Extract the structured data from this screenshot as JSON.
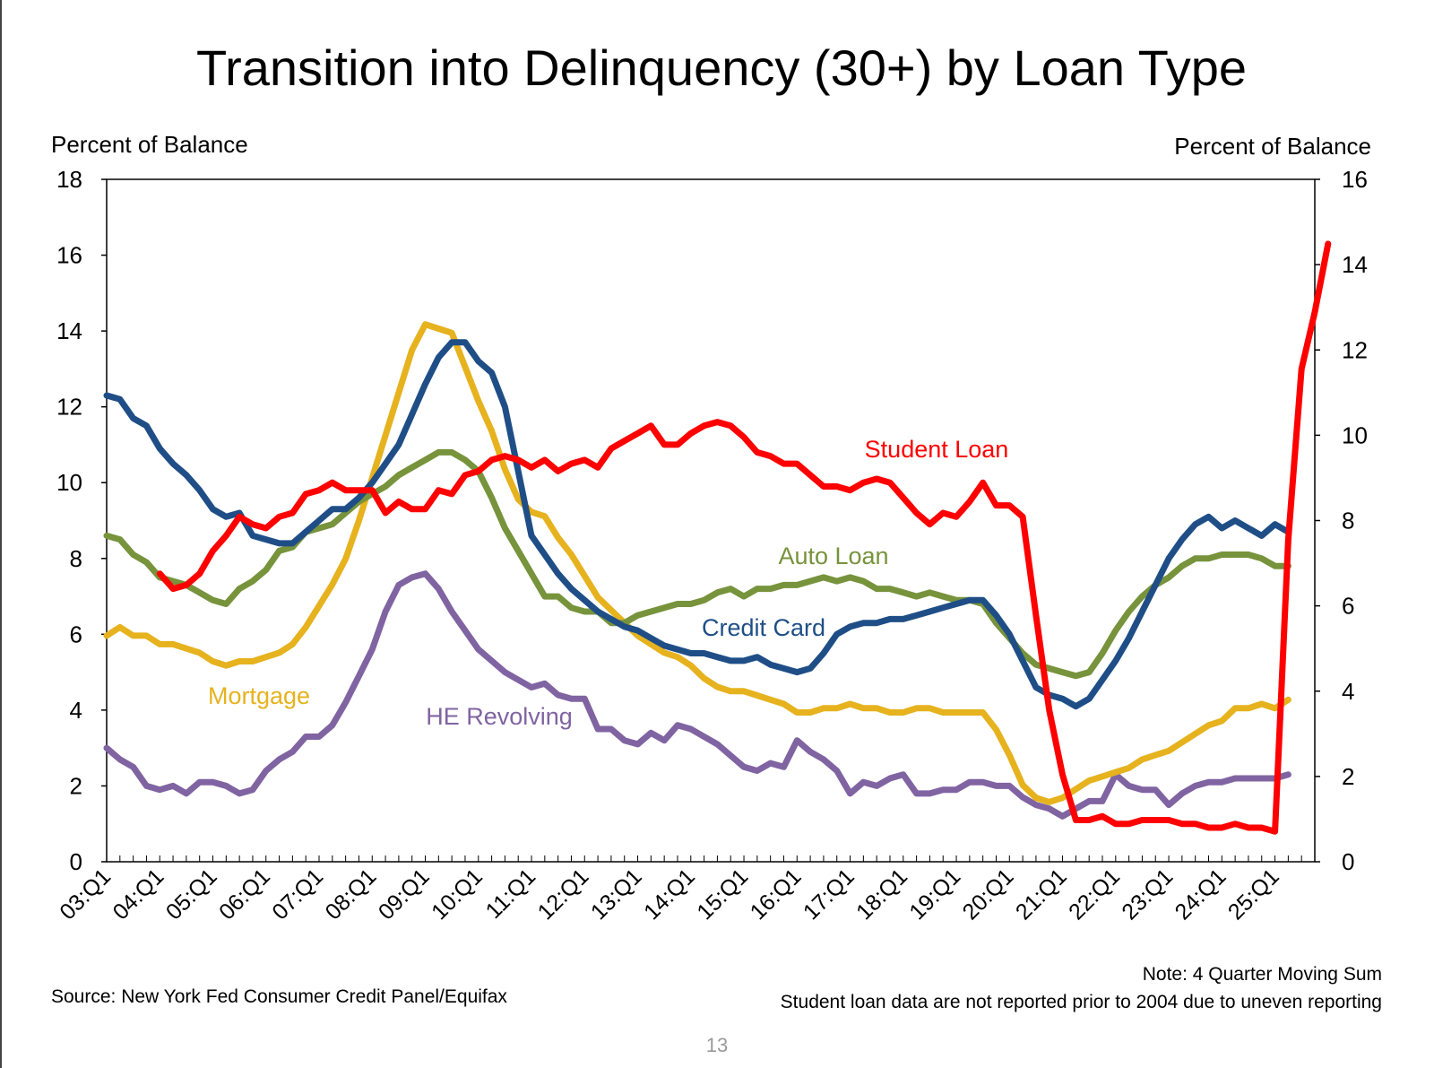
{
  "page": {
    "title": "Transition into Delinquency (30+) by Loan Type",
    "left_axis_label": "Percent of Balance",
    "right_axis_label": "Percent of Balance",
    "source": "Source: New York Fed Consumer Credit Panel/Equifax",
    "note_line1": "Note: 4 Quarter Moving Sum",
    "note_line2": "Student loan data are not reported prior to 2004 due to uneven reporting",
    "page_number": "13"
  },
  "colors": {
    "student_loan": "#ff0000",
    "credit_card": "#1f4e87",
    "auto_loan": "#77933c",
    "mortgage": "#e6b21e",
    "he_revolving": "#8064a2"
  },
  "chart_data": {
    "type": "line",
    "title": "Transition into Delinquency (30+) by Loan Type",
    "ylabel": "Percent of Balance",
    "y2label": "Percent of Balance",
    "ylim": [
      0,
      18
    ],
    "y_ticks": [
      "0",
      "2",
      "4",
      "6",
      "8",
      "10",
      "12",
      "14",
      "16",
      "18"
    ],
    "y2lim": [
      0,
      16
    ],
    "y2_ticks": [
      "0",
      "2",
      "4",
      "6",
      "8",
      "10",
      "12",
      "14",
      "16"
    ],
    "x_start": "03:Q1",
    "x_tick_labels": [
      "03:Q1",
      "04:Q1",
      "05:Q1",
      "06:Q1",
      "07:Q1",
      "08:Q1",
      "09:Q1",
      "10:Q1",
      "11:Q1",
      "12:Q1",
      "13:Q1",
      "14:Q1",
      "15:Q1",
      "16:Q1",
      "17:Q1",
      "18:Q1",
      "19:Q1",
      "20:Q1",
      "21:Q1",
      "22:Q1",
      "23:Q1",
      "24:Q1",
      "25:Q1"
    ],
    "grid": false,
    "series": [
      {
        "name": "Student Loan",
        "axis": "left",
        "start": "04:Q1",
        "values": [
          7.6,
          7.2,
          7.3,
          7.6,
          8.2,
          8.6,
          9.1,
          8.9,
          8.8,
          9.1,
          9.2,
          9.7,
          9.8,
          10.0,
          9.8,
          9.8,
          9.8,
          9.2,
          9.5,
          9.3,
          9.3,
          9.8,
          9.7,
          10.2,
          10.3,
          10.6,
          10.7,
          10.6,
          10.4,
          10.6,
          10.3,
          10.5,
          10.6,
          10.4,
          10.9,
          11.1,
          11.3,
          11.5,
          11.0,
          11.0,
          11.3,
          11.5,
          11.6,
          11.5,
          11.2,
          10.8,
          10.7,
          10.5,
          10.5,
          10.2,
          9.9,
          9.9,
          9.8,
          10.0,
          10.1,
          10.0,
          9.6,
          9.2,
          8.9,
          9.2,
          9.1,
          9.5,
          10.0,
          9.4,
          9.4,
          9.1,
          6.5,
          4.0,
          2.3,
          1.1,
          1.1,
          1.2,
          1.0,
          1.0,
          1.1,
          1.1,
          1.1,
          1.0,
          1.0,
          0.9,
          0.9,
          1.0,
          0.9,
          0.9,
          0.8,
          8.5,
          13.0,
          14.5,
          16.3
        ]
      },
      {
        "name": "Credit Card",
        "axis": "left",
        "start": "03:Q1",
        "values": [
          12.3,
          12.2,
          11.7,
          11.5,
          10.9,
          10.5,
          10.2,
          9.8,
          9.3,
          9.1,
          9.2,
          8.6,
          8.5,
          8.4,
          8.4,
          8.7,
          9.0,
          9.3,
          9.3,
          9.6,
          10.0,
          10.5,
          11.0,
          11.8,
          12.6,
          13.3,
          13.7,
          13.7,
          13.2,
          12.9,
          12.0,
          10.3,
          8.6,
          8.1,
          7.6,
          7.2,
          6.9,
          6.6,
          6.4,
          6.2,
          6.1,
          5.9,
          5.7,
          5.6,
          5.5,
          5.5,
          5.4,
          5.3,
          5.3,
          5.4,
          5.2,
          5.1,
          5.0,
          5.1,
          5.5,
          6.0,
          6.2,
          6.3,
          6.3,
          6.4,
          6.4,
          6.5,
          6.6,
          6.7,
          6.8,
          6.9,
          6.9,
          6.5,
          6.0,
          5.3,
          4.6,
          4.4,
          4.3,
          4.1,
          4.3,
          4.8,
          5.3,
          5.9,
          6.6,
          7.3,
          8.0,
          8.5,
          8.9,
          9.1,
          8.8,
          9.0,
          8.8,
          8.6,
          8.9,
          8.7
        ]
      },
      {
        "name": "Auto Loan",
        "axis": "left",
        "start": "03:Q1",
        "values": [
          8.6,
          8.5,
          8.1,
          7.9,
          7.5,
          7.4,
          7.3,
          7.1,
          6.9,
          6.8,
          7.2,
          7.4,
          7.7,
          8.2,
          8.3,
          8.7,
          8.8,
          8.9,
          9.2,
          9.5,
          9.7,
          9.9,
          10.2,
          10.4,
          10.6,
          10.8,
          10.8,
          10.6,
          10.3,
          9.6,
          8.8,
          8.2,
          7.6,
          7.0,
          7.0,
          6.7,
          6.6,
          6.6,
          6.3,
          6.3,
          6.5,
          6.6,
          6.7,
          6.8,
          6.8,
          6.9,
          7.1,
          7.2,
          7.0,
          7.2,
          7.2,
          7.3,
          7.3,
          7.4,
          7.5,
          7.4,
          7.5,
          7.4,
          7.2,
          7.2,
          7.1,
          7.0,
          7.1,
          7.0,
          6.9,
          6.9,
          6.8,
          6.3,
          5.9,
          5.5,
          5.2,
          5.1,
          5.0,
          4.9,
          5.0,
          5.5,
          6.1,
          6.6,
          7.0,
          7.3,
          7.5,
          7.8,
          8.0,
          8.0,
          8.1,
          8.1,
          8.1,
          8.0,
          7.8,
          7.8
        ]
      },
      {
        "name": "Mortgage",
        "axis": "right",
        "start": "03:Q1",
        "values": [
          5.3,
          5.5,
          5.3,
          5.3,
          5.1,
          5.1,
          5.0,
          4.9,
          4.7,
          4.6,
          4.7,
          4.7,
          4.8,
          4.9,
          5.1,
          5.5,
          6.0,
          6.5,
          7.1,
          8.0,
          9.0,
          10.0,
          11.0,
          12.0,
          12.6,
          12.5,
          12.4,
          11.6,
          10.8,
          10.1,
          9.2,
          8.5,
          8.2,
          8.1,
          7.6,
          7.2,
          6.7,
          6.2,
          5.9,
          5.6,
          5.3,
          5.1,
          4.9,
          4.8,
          4.6,
          4.3,
          4.1,
          4.0,
          4.0,
          3.9,
          3.8,
          3.7,
          3.5,
          3.5,
          3.6,
          3.6,
          3.7,
          3.6,
          3.6,
          3.5,
          3.5,
          3.6,
          3.6,
          3.5,
          3.5,
          3.5,
          3.5,
          3.1,
          2.5,
          1.8,
          1.5,
          1.4,
          1.5,
          1.7,
          1.9,
          2.0,
          2.1,
          2.2,
          2.4,
          2.5,
          2.6,
          2.8,
          3.0,
          3.2,
          3.3,
          3.6,
          3.6,
          3.7,
          3.6,
          3.8
        ]
      },
      {
        "name": "HE Revolving",
        "axis": "left",
        "start": "03:Q1",
        "values": [
          3.0,
          2.7,
          2.5,
          2.0,
          1.9,
          2.0,
          1.8,
          2.1,
          2.1,
          2.0,
          1.8,
          1.9,
          2.4,
          2.7,
          2.9,
          3.3,
          3.3,
          3.6,
          4.2,
          4.9,
          5.6,
          6.6,
          7.3,
          7.5,
          7.6,
          7.2,
          6.6,
          6.1,
          5.6,
          5.3,
          5.0,
          4.8,
          4.6,
          4.7,
          4.4,
          4.3,
          4.3,
          3.5,
          3.5,
          3.2,
          3.1,
          3.4,
          3.2,
          3.6,
          3.5,
          3.3,
          3.1,
          2.8,
          2.5,
          2.4,
          2.6,
          2.5,
          3.2,
          2.9,
          2.7,
          2.4,
          1.8,
          2.1,
          2.0,
          2.2,
          2.3,
          1.8,
          1.8,
          1.9,
          1.9,
          2.1,
          2.1,
          2.0,
          2.0,
          1.7,
          1.5,
          1.4,
          1.2,
          1.4,
          1.6,
          1.6,
          2.3,
          2.0,
          1.9,
          1.9,
          1.5,
          1.8,
          2.0,
          2.1,
          2.1,
          2.2,
          2.2,
          2.2,
          2.2,
          2.3
        ]
      }
    ],
    "annotations": {
      "student_loan": "Student Loan",
      "auto_loan": "Auto Loan",
      "credit_card": "Credit Card",
      "mortgage": "Mortgage",
      "he_revolving": "HE Revolving"
    }
  }
}
